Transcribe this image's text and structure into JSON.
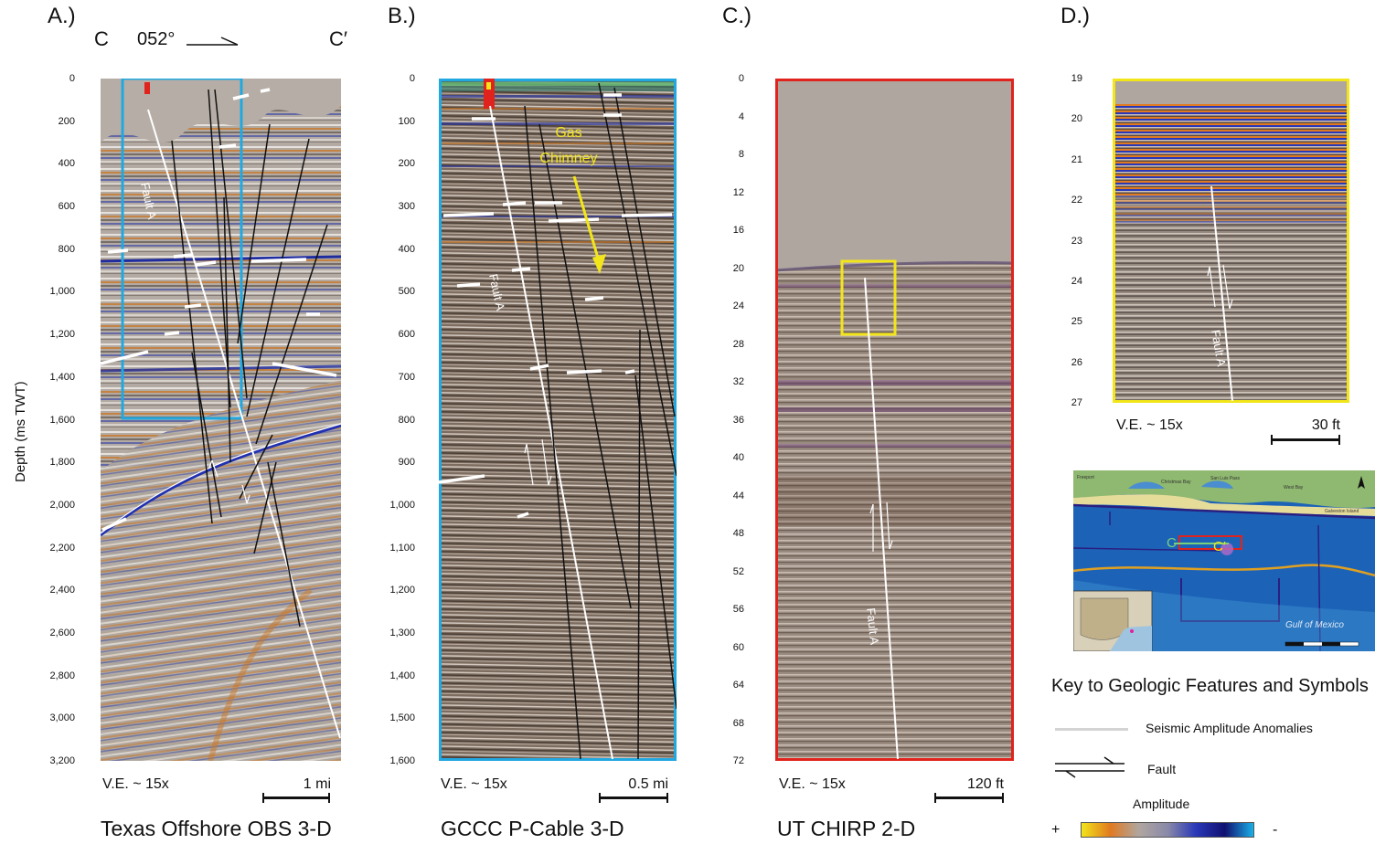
{
  "panels": {
    "a": {
      "letter": "A.)",
      "left_end": "C",
      "azimuth": "052°",
      "right_end": "C′",
      "depth_ticks": [
        "0",
        "200",
        "400",
        "600",
        "800",
        "1,000",
        "1,200",
        "1,400",
        "1,600",
        "1,800",
        "2,000",
        "2,200",
        "2,400",
        "2,600",
        "2,800",
        "3,000",
        "3,200"
      ],
      "fault_label": "Fault A",
      "ve": "V.E. ~ 15x",
      "scale": "1 mi",
      "title": "Texas Offshore OBS 3-D"
    },
    "b": {
      "letter": "B.)",
      "depth_ticks": [
        "0",
        "100",
        "200",
        "300",
        "400",
        "500",
        "600",
        "700",
        "800",
        "900",
        "1,000",
        "1,100",
        "1,200",
        "1,300",
        "1,400",
        "1,500",
        "1,600"
      ],
      "fault_label": "Fault A",
      "annotation_line1": "Gas",
      "annotation_line2": "Chimney",
      "ve": "V.E. ~ 15x",
      "scale": "0.5 mi",
      "title": "GCCC P-Cable 3-D"
    },
    "c": {
      "letter": "C.)",
      "depth_ticks": [
        "0",
        "4",
        "8",
        "12",
        "16",
        "20",
        "24",
        "28",
        "32",
        "36",
        "40",
        "44",
        "48",
        "52",
        "56",
        "60",
        "64",
        "68",
        "72"
      ],
      "fault_label": "Fault A",
      "ve": "V.E. ~ 15x",
      "scale": "120 ft",
      "title": "UT CHIRP 2-D"
    },
    "d": {
      "letter": "D.)",
      "depth_ticks": [
        "19",
        "20",
        "21",
        "22",
        "23",
        "24",
        "25",
        "26",
        "27"
      ],
      "fault_label": "Fault A",
      "ve": "V.E. ~ 15x",
      "scale": "30  ft"
    }
  },
  "y_axis_label": "Depth (ms TWT)",
  "map": {
    "place_labels": [
      "Freeport",
      "Christmas Bay",
      "San Luis Pass",
      "West Bay",
      "Galveston Island"
    ],
    "line_start": "C",
    "line_end": "C′",
    "gulf_label": "Gulf of Mexico"
  },
  "key": {
    "title": "Key to Geologic Features and Symbols",
    "anomalies": "Seismic Amplitude Anomalies",
    "fault": "Fault",
    "amplitude": "Amplitude",
    "plus": "+",
    "minus": "-"
  },
  "colors": {
    "box_a": "#22a8e0",
    "box_b": "#22a8e0",
    "box_c": "#e0231c",
    "box_d": "#f2e51a",
    "annotation": "#f2e51a"
  }
}
